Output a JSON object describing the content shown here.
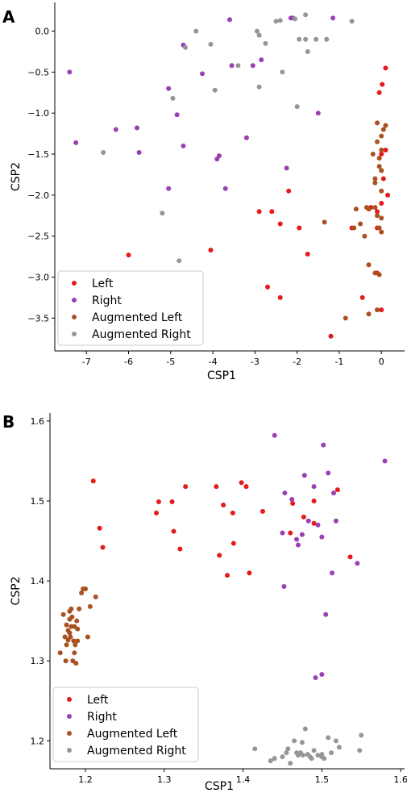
{
  "colors": {
    "Left": "#e41a1c",
    "Right": "#9b3fb5",
    "Augmented Left": "#a9511f",
    "Augmented Right": "#969696"
  },
  "chart_data": [
    {
      "type": "scatter",
      "panel": "A",
      "xlabel": "CSP1",
      "ylabel": "CSP2",
      "xlim": [
        -7.75,
        0.55
      ],
      "ylim": [
        -3.9,
        0.35
      ],
      "xticks": [
        "-7",
        "-6",
        "-5",
        "-4",
        "-3",
        "-2",
        "-1",
        "0"
      ],
      "xtick_values": [
        -7,
        -6,
        -5,
        -4,
        -3,
        -2,
        -1,
        0
      ],
      "yticks": [
        "0.0",
        "−0.5",
        "−1.0",
        "−1.5",
        "−2.0",
        "−2.5",
        "−3.0",
        "−3.5"
      ],
      "ytick_values": [
        0,
        -0.5,
        -1,
        -1.5,
        -2,
        -2.5,
        -3,
        -3.5
      ],
      "legend": {
        "position": "lower-left",
        "entries": [
          "Left",
          "Right",
          "Augmented Left",
          "Augmented Right"
        ]
      },
      "series": [
        {
          "name": "Left",
          "x": [
            0.1,
            0.02,
            -0.05,
            0.0,
            0.1,
            0.05,
            0.15,
            0.0,
            -0.1,
            -0.25,
            -0.7,
            -0.1,
            -0.45,
            -0.1,
            0.0,
            -1.2,
            -2.2,
            -2.6,
            -2.9,
            -2.4,
            -1.95,
            -1.75,
            -2.7,
            -2.4,
            -4.05,
            -6.0
          ],
          "y": [
            -0.45,
            -0.65,
            -0.75,
            -1.5,
            -1.45,
            -1.8,
            -2.0,
            -2.1,
            -2.2,
            -2.15,
            -2.4,
            -2.4,
            -3.25,
            -2.95,
            -3.4,
            -3.72,
            -1.95,
            -2.2,
            -2.2,
            -2.35,
            -2.4,
            -2.72,
            -3.12,
            -3.25,
            -2.67,
            -2.73
          ]
        },
        {
          "name": "Right",
          "x": [
            -7.4,
            -7.25,
            -6.3,
            -5.8,
            -5.75,
            -5.05,
            -4.85,
            -4.25,
            -4.7,
            -4.7,
            -3.6,
            -3.55,
            -3.2,
            -3.05,
            -2.85,
            -3.9,
            -3.85,
            -3.7,
            -5.05,
            -2.15,
            -2.1,
            -1.15,
            -2.25,
            -1.5
          ],
          "y": [
            -0.5,
            -1.36,
            -1.2,
            -1.18,
            -1.48,
            -0.7,
            -1.02,
            -0.52,
            -1.4,
            -0.17,
            0.14,
            -0.42,
            -1.3,
            -0.42,
            -0.35,
            -1.56,
            -1.52,
            -1.92,
            -1.92,
            0.16,
            0.16,
            0.16,
            -1.67,
            -1.0
          ]
        },
        {
          "name": "Augmented Left",
          "x": [
            -0.35,
            -0.3,
            -0.4,
            -0.15,
            -0.05,
            0.1,
            0.0,
            -0.1,
            0.05,
            -0.05,
            0.0,
            -0.2,
            -0.15,
            -0.1,
            0.0,
            0.0,
            -0.3,
            -0.6,
            -0.65,
            -0.5,
            -0.3,
            -0.15,
            -0.05,
            -0.1,
            -0.1,
            -1.35,
            -0.85,
            0.0,
            -0.05,
            0.0,
            -0.15,
            0.0
          ],
          "y": [
            -2.15,
            -2.17,
            -2.5,
            -2.15,
            -2.4,
            -1.15,
            -1.45,
            -1.12,
            -1.2,
            -1.65,
            -1.7,
            -1.5,
            -1.8,
            -2.25,
            -2.28,
            -2.45,
            -2.85,
            -2.17,
            -2.4,
            -2.35,
            -3.45,
            -2.95,
            -2.97,
            -3.4,
            -1.35,
            -2.33,
            -3.5,
            -1.28,
            -1.55,
            -1.95,
            -1.85,
            -1.7
          ]
        },
        {
          "name": "Augmented Right",
          "x": [
            -4.4,
            -4.65,
            -4.95,
            -3.95,
            -3.4,
            -2.95,
            -2.9,
            -2.75,
            -2.5,
            -2.35,
            -2.05,
            -1.95,
            -1.8,
            -1.75,
            -1.3,
            -2.4,
            -1.8,
            -2.0,
            -0.7,
            -2.9,
            -4.05,
            -6.6,
            -5.2,
            -4.8,
            -1.55
          ],
          "y": [
            0.0,
            -0.2,
            -0.82,
            -0.72,
            -0.42,
            0.0,
            -0.05,
            -0.15,
            0.12,
            -0.5,
            0.15,
            -0.1,
            -0.1,
            -0.25,
            -0.1,
            0.13,
            0.2,
            -0.92,
            0.12,
            -0.68,
            -0.16,
            -1.48,
            -2.22,
            -2.8,
            -0.1
          ]
        }
      ]
    },
    {
      "type": "scatter",
      "panel": "B",
      "xlabel": "CSP1",
      "ylabel": "CSP2",
      "xlim": [
        1.155,
        1.605
      ],
      "ylim": [
        1.165,
        1.61
      ],
      "xticks": [
        "1.2",
        "1.3",
        "1.4",
        "1.5",
        "1.6"
      ],
      "xtick_values": [
        1.2,
        1.3,
        1.4,
        1.5,
        1.6
      ],
      "yticks": [
        "1.2",
        "1.3",
        "1.4",
        "1.5",
        "1.6"
      ],
      "ytick_values": [
        1.2,
        1.3,
        1.4,
        1.5,
        1.6
      ],
      "legend": {
        "position": "lower-left",
        "entries": [
          "Left",
          "Right",
          "Augmented Left",
          "Augmented Right"
        ]
      },
      "series": [
        {
          "name": "Left",
          "x": [
            1.21,
            1.218,
            1.222,
            1.29,
            1.293,
            1.31,
            1.312,
            1.32,
            1.327,
            1.366,
            1.37,
            1.375,
            1.38,
            1.387,
            1.388,
            1.398,
            1.404,
            1.408,
            1.425,
            1.463,
            1.477,
            1.49,
            1.49,
            1.52,
            1.536,
            1.46
          ],
          "y": [
            1.525,
            1.466,
            1.442,
            1.485,
            1.499,
            1.499,
            1.462,
            1.44,
            1.518,
            1.518,
            1.432,
            1.495,
            1.407,
            1.485,
            1.447,
            1.523,
            1.518,
            1.41,
            1.487,
            1.497,
            1.48,
            1.472,
            1.5,
            1.514,
            1.43,
            1.46
          ]
        },
        {
          "name": "Right",
          "x": [
            1.44,
            1.45,
            1.453,
            1.462,
            1.468,
            1.47,
            1.475,
            1.478,
            1.483,
            1.49,
            1.495,
            1.5,
            1.502,
            1.505,
            1.508,
            1.513,
            1.515,
            1.518,
            1.545,
            1.58,
            1.492,
            1.5,
            1.452
          ],
          "y": [
            1.582,
            1.46,
            1.51,
            1.502,
            1.452,
            1.445,
            1.458,
            1.532,
            1.475,
            1.518,
            1.47,
            1.455,
            1.57,
            1.358,
            1.535,
            1.41,
            1.51,
            1.475,
            1.422,
            1.55,
            1.279,
            1.283,
            1.393
          ]
        },
        {
          "name": "Augmented Left",
          "x": [
            1.168,
            1.172,
            1.174,
            1.175,
            1.176,
            1.178,
            1.18,
            1.181,
            1.182,
            1.183,
            1.184,
            1.185,
            1.186,
            1.187,
            1.188,
            1.189,
            1.19,
            1.192,
            1.195,
            1.197,
            1.2,
            1.203,
            1.206,
            1.213,
            1.178,
            1.182,
            1.176,
            1.18,
            1.18,
            1.186,
            1.19
          ],
          "y": [
            1.31,
            1.358,
            1.33,
            1.3,
            1.345,
            1.326,
            1.362,
            1.33,
            1.343,
            1.355,
            1.3,
            1.325,
            1.343,
            1.32,
            1.297,
            1.35,
            1.325,
            1.365,
            1.385,
            1.39,
            1.39,
            1.33,
            1.368,
            1.38,
            1.338,
            1.365,
            1.32,
            1.335,
            1.352,
            1.31,
            1.34
          ]
        },
        {
          "name": "Augmented Right",
          "x": [
            1.415,
            1.435,
            1.44,
            1.45,
            1.455,
            1.457,
            1.46,
            1.465,
            1.468,
            1.47,
            1.473,
            1.476,
            1.479,
            1.482,
            1.485,
            1.487,
            1.49,
            1.495,
            1.5,
            1.503,
            1.508,
            1.512,
            1.518,
            1.522,
            1.548,
            1.55,
            1.475,
            1.5
          ],
          "y": [
            1.19,
            1.175,
            1.178,
            1.18,
            1.185,
            1.19,
            1.172,
            1.2,
            1.185,
            1.182,
            1.185,
            1.182,
            1.215,
            1.183,
            1.18,
            1.178,
            1.188,
            1.182,
            1.18,
            1.178,
            1.204,
            1.185,
            1.2,
            1.192,
            1.188,
            1.207,
            1.198,
            1.183
          ]
        }
      ]
    }
  ]
}
